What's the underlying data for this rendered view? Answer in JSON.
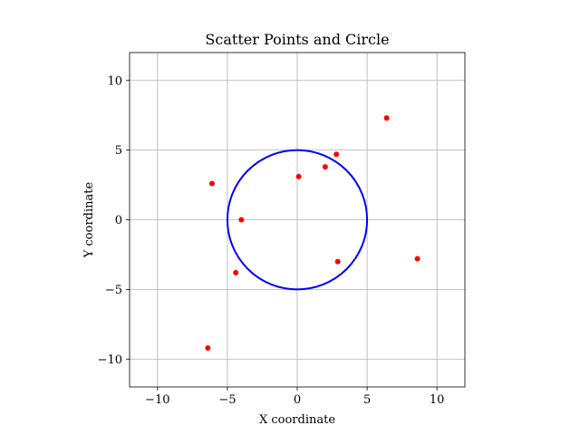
{
  "chart_data": {
    "type": "scatter",
    "title": "Scatter Points and Circle",
    "xlabel": "X coordinate",
    "ylabel": "Y coordinate",
    "xlim": [
      -12,
      12
    ],
    "ylim": [
      -12,
      12
    ],
    "xticks": [
      -10,
      -5,
      0,
      5,
      10
    ],
    "yticks": [
      -10,
      -5,
      0,
      5,
      10
    ],
    "xtick_labels": [
      "−10",
      "−5",
      "0",
      "5",
      "10"
    ],
    "ytick_labels": [
      "−10",
      "−5",
      "0",
      "5",
      "10"
    ],
    "grid": true,
    "aspect": "equal",
    "points": {
      "color": "#ff0000",
      "x": [
        -6.4,
        -6.1,
        -4.0,
        -4.4,
        0.1,
        2.0,
        2.8,
        2.9,
        6.4,
        8.6
      ],
      "y": [
        -9.2,
        2.6,
        0.0,
        -3.8,
        3.1,
        3.8,
        4.7,
        -3.0,
        7.3,
        -2.8
      ]
    },
    "circle": {
      "color": "#0000ff",
      "center": [
        0,
        0
      ],
      "radius": 5
    }
  }
}
